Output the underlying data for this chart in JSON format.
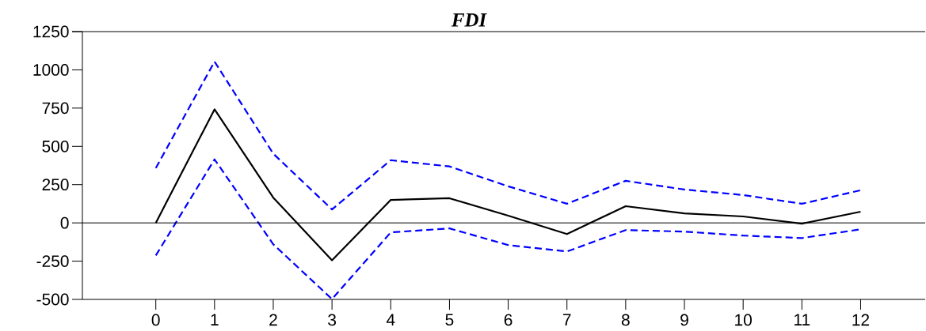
{
  "chart_data": {
    "type": "line",
    "title": "FDI",
    "x": [
      0,
      1,
      2,
      3,
      4,
      5,
      6,
      7,
      8,
      9,
      10,
      11,
      12
    ],
    "series": [
      {
        "color": "#000000",
        "line_style": "solid",
        "values": [
          0,
          742,
          165,
          -244,
          150,
          161,
          47,
          -73,
          109,
          62,
          42,
          -5,
          73
        ]
      },
      {
        "color": "#0000ff",
        "line_style": "dashed",
        "values": [
          358,
          1054,
          452,
          88,
          410,
          369,
          239,
          125,
          275,
          218,
          182,
          125,
          213
        ]
      },
      {
        "color": "#0000ff",
        "line_style": "dashed",
        "values": [
          -213,
          415,
          -140,
          -498,
          -62,
          -36,
          -145,
          -187,
          -47,
          -57,
          -83,
          -99,
          -42
        ]
      }
    ],
    "xlim": [
      -1.25,
      13.1
    ],
    "xticks": [
      0,
      1,
      2,
      3,
      4,
      5,
      6,
      7,
      8,
      9,
      10,
      11,
      12
    ],
    "ylim": [
      -500,
      1250
    ],
    "yticks": [
      -500,
      -250,
      0,
      250,
      500,
      750,
      1000,
      1250
    ],
    "ref_lines": [
      {
        "axis": "y",
        "value": 0,
        "color": "#000000"
      }
    ],
    "grid": false,
    "marker": "none"
  }
}
